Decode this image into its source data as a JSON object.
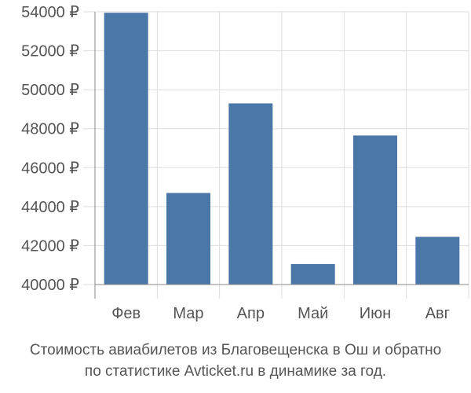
{
  "chart_data": {
    "type": "bar",
    "categories": [
      "Фев",
      "Мар",
      "Апр",
      "Май",
      "Июн",
      "Авг"
    ],
    "values": [
      53950,
      44700,
      49300,
      41050,
      47650,
      42450
    ],
    "ylim": [
      40000,
      54000
    ],
    "yticks": [
      40000,
      42000,
      44000,
      46000,
      48000,
      50000,
      52000,
      54000
    ],
    "ytick_labels": [
      "40000 ₽",
      "42000 ₽",
      "44000 ₽",
      "46000 ₽",
      "48000 ₽",
      "50000 ₽",
      "52000 ₽",
      "54000 ₽"
    ],
    "bar_color": "#4a76a8",
    "grid_color": "#dddddd",
    "axis_color": "#888888",
    "grid": true
  },
  "caption": {
    "line1": "Стоимость авиабилетов из Благовещенска в Ош и обратно",
    "line2": "по статистике Avticket.ru в динамике за год."
  }
}
